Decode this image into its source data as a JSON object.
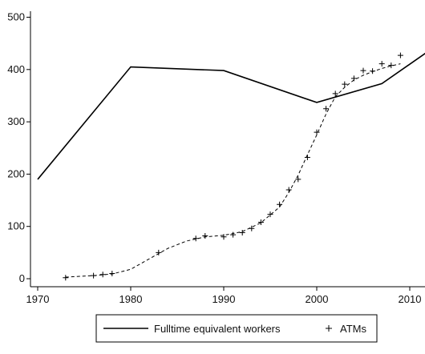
{
  "chart_data": {
    "type": "line",
    "title": "",
    "xlabel": "",
    "ylabel": "",
    "xlim": [
      1970,
      2012
    ],
    "ylim": [
      0,
      500
    ],
    "x_ticks": [
      1970,
      1980,
      1990,
      2000,
      2010
    ],
    "x_tick_labels": [
      "1970",
      "1980",
      "1990",
      "2000",
      "2010"
    ],
    "y_ticks": [
      0,
      100,
      200,
      300,
      400,
      500
    ],
    "y_tick_labels": [
      "0",
      "100",
      "200",
      "300",
      "400",
      "500"
    ],
    "grid": false,
    "legend_placement": "bottom",
    "series": [
      {
        "name": "Fulltime equivalent workers",
        "style": "solid-line",
        "color": "#000000",
        "x": [
          1970,
          1980,
          1990,
          2000,
          2007,
          2012
        ],
        "y": [
          190,
          405,
          398,
          337,
          373,
          435
        ]
      },
      {
        "name": "ATMs",
        "style": "plus-markers",
        "color": "#000000",
        "x": [
          1973,
          1976,
          1977,
          1978,
          1983,
          1987,
          1988,
          1990,
          1991,
          1992,
          1993,
          1994,
          1995,
          1996,
          1997,
          1998,
          1999,
          2000,
          2001,
          2002,
          2003,
          2004,
          2005,
          2006,
          2007,
          2008,
          2009
        ],
        "y": [
          2,
          6,
          8,
          10,
          50,
          77,
          82,
          80,
          84,
          88,
          96,
          108,
          123,
          142,
          170,
          190,
          232,
          280,
          325,
          354,
          372,
          383,
          398,
          397,
          411,
          408,
          427
        ]
      },
      {
        "name": "",
        "style": "dashed-line",
        "color": "#000000",
        "x": [
          1973,
          1976,
          1978,
          1980,
          1982,
          1984,
          1986,
          1988,
          1990,
          1992,
          1994,
          1996,
          1997,
          1998,
          1999,
          2000,
          2001,
          2002,
          2003,
          2004,
          2005,
          2006,
          2007,
          2008,
          2009
        ],
        "y": [
          3,
          6,
          9,
          18,
          38,
          58,
          72,
          80,
          83,
          90,
          107,
          137,
          165,
          198,
          237,
          275,
          315,
          348,
          366,
          380,
          389,
          396,
          402,
          407,
          411
        ]
      }
    ]
  }
}
